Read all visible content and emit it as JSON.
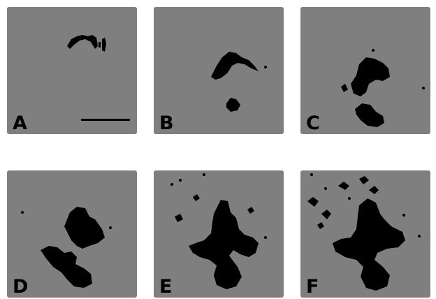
{
  "figure": {
    "panels": [
      {
        "label": "A"
      },
      {
        "label": "B"
      },
      {
        "label": "C"
      },
      {
        "label": "D"
      },
      {
        "label": "E"
      },
      {
        "label": "F"
      }
    ],
    "colors": {
      "background": "#7f7f7f",
      "foreground": "#000000"
    }
  }
}
